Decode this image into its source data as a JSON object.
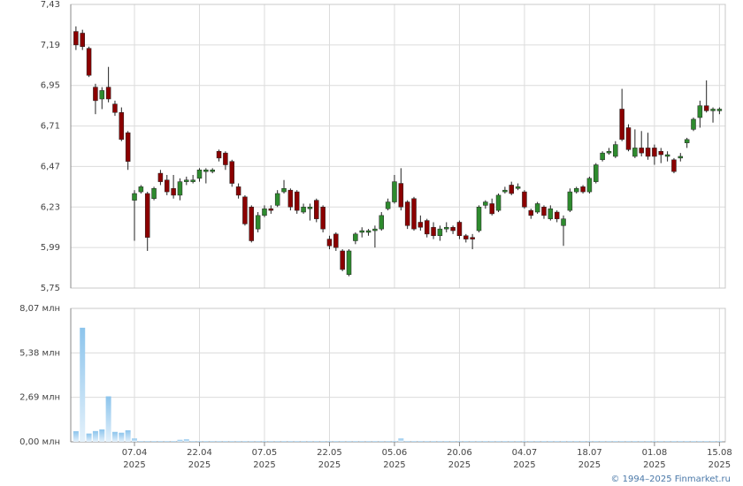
{
  "chart_data": {
    "type": "candlestick",
    "categories": [
      null,
      null,
      null,
      null,
      null,
      null,
      null,
      null,
      null,
      "07.04\n2025",
      null,
      null,
      null,
      null,
      null,
      null,
      null,
      null,
      null,
      "22.04\n2025",
      null,
      null,
      null,
      null,
      null,
      null,
      null,
      null,
      null,
      "07.05\n2025",
      null,
      null,
      null,
      null,
      null,
      null,
      null,
      null,
      null,
      "22.05\n2025",
      null,
      null,
      null,
      null,
      null,
      null,
      null,
      null,
      null,
      "05.06\n2025",
      null,
      null,
      null,
      null,
      null,
      null,
      null,
      null,
      null,
      "20.06\n2025",
      null,
      null,
      null,
      null,
      null,
      null,
      null,
      null,
      null,
      "04.07\n2025",
      null,
      null,
      null,
      null,
      null,
      null,
      null,
      null,
      null,
      "18.07\n2025",
      null,
      null,
      null,
      null,
      null,
      null,
      null,
      null,
      null,
      "01.08\n2025",
      null,
      null,
      null,
      null,
      null,
      null,
      null,
      null,
      null,
      "15.08\n2025"
    ],
    "open": [
      7.27,
      7.26,
      7.17,
      6.94,
      6.87,
      6.94,
      6.84,
      6.79,
      6.67,
      6.27,
      6.32,
      6.31,
      6.28,
      6.43,
      6.39,
      6.34,
      6.3,
      6.38,
      6.38,
      6.4,
      6.44,
      6.44,
      6.56,
      6.55,
      6.5,
      6.35,
      6.29,
      6.23,
      6.1,
      6.18,
      6.22,
      6.24,
      6.32,
      6.33,
      6.32,
      6.2,
      6.22,
      6.27,
      6.23,
      6.04,
      6.07,
      5.97,
      5.83,
      6.03,
      6.08,
      6.08,
      6.09,
      6.1,
      6.22,
      6.26,
      6.37,
      6.26,
      6.28,
      6.14,
      6.15,
      6.11,
      6.06,
      6.1,
      6.11,
      6.14,
      6.06,
      6.05,
      6.09,
      6.24,
      6.25,
      6.21,
      6.32,
      6.36,
      6.34,
      6.32,
      6.21,
      6.2,
      6.23,
      6.16,
      6.2,
      6.12,
      6.21,
      6.32,
      6.35,
      6.32,
      6.38,
      6.51,
      6.55,
      6.53,
      6.81,
      6.7,
      6.53,
      6.58,
      6.58,
      6.58,
      6.56,
      6.53,
      6.51,
      6.52,
      6.61,
      6.69,
      6.76,
      6.83,
      6.8,
      6.8
    ],
    "high": [
      7.3,
      7.28,
      7.18,
      6.96,
      6.94,
      7.06,
      6.86,
      6.82,
      6.68,
      6.33,
      6.36,
      6.32,
      6.35,
      6.45,
      6.42,
      6.42,
      6.4,
      6.41,
      6.42,
      6.46,
      6.46,
      6.46,
      6.57,
      6.56,
      6.51,
      6.37,
      6.3,
      6.24,
      6.2,
      6.24,
      6.24,
      6.33,
      6.39,
      6.34,
      6.33,
      6.25,
      6.25,
      6.28,
      6.24,
      6.06,
      6.08,
      5.98,
      5.98,
      6.08,
      6.11,
      6.1,
      6.12,
      6.2,
      6.28,
      6.42,
      6.46,
      6.27,
      6.29,
      6.18,
      6.16,
      6.14,
      6.12,
      6.14,
      6.12,
      6.15,
      6.07,
      6.07,
      6.24,
      6.27,
      6.28,
      6.31,
      6.35,
      6.38,
      6.37,
      6.33,
      6.22,
      6.26,
      6.24,
      6.24,
      6.21,
      6.18,
      6.34,
      6.35,
      6.36,
      6.41,
      6.49,
      6.56,
      6.58,
      6.62,
      6.93,
      6.72,
      6.69,
      6.68,
      6.67,
      6.6,
      6.58,
      6.56,
      6.52,
      6.55,
      6.64,
      6.76,
      6.86,
      6.98,
      6.82,
      6.82
    ],
    "low": [
      7.16,
      7.16,
      7.0,
      6.78,
      6.81,
      6.85,
      6.77,
      6.62,
      6.45,
      6.03,
      6.31,
      5.97,
      6.27,
      6.36,
      6.3,
      6.28,
      6.27,
      6.36,
      6.37,
      6.38,
      6.37,
      6.43,
      6.5,
      6.45,
      6.35,
      6.28,
      6.12,
      6.02,
      6.08,
      6.17,
      6.19,
      6.23,
      6.31,
      6.21,
      6.19,
      6.19,
      6.15,
      6.14,
      6.08,
      5.98,
      5.97,
      5.85,
      5.82,
      6.01,
      6.05,
      6.06,
      5.99,
      6.09,
      6.21,
      6.25,
      6.21,
      6.1,
      6.09,
      6.09,
      6.05,
      6.04,
      6.03,
      6.08,
      6.07,
      6.04,
      6.02,
      5.98,
      6.08,
      6.22,
      6.18,
      6.2,
      6.31,
      6.3,
      6.33,
      6.22,
      6.16,
      6.19,
      6.16,
      6.15,
      6.14,
      6.0,
      6.2,
      6.31,
      6.31,
      6.31,
      6.37,
      6.5,
      6.54,
      6.52,
      6.62,
      6.56,
      6.52,
      6.53,
      6.51,
      6.48,
      6.49,
      6.5,
      6.43,
      6.5,
      6.58,
      6.68,
      6.7,
      6.79,
      6.73,
      6.78
    ],
    "close": [
      7.19,
      7.18,
      7.01,
      6.86,
      6.92,
      6.87,
      6.79,
      6.63,
      6.5,
      6.31,
      6.35,
      6.05,
      6.34,
      6.38,
      6.32,
      6.3,
      6.38,
      6.39,
      6.39,
      6.45,
      6.45,
      6.45,
      6.52,
      6.48,
      6.37,
      6.3,
      6.13,
      6.03,
      6.18,
      6.22,
      6.21,
      6.31,
      6.34,
      6.23,
      6.21,
      6.23,
      6.23,
      6.16,
      6.1,
      6.0,
      5.99,
      5.86,
      5.97,
      6.07,
      6.09,
      6.09,
      6.1,
      6.18,
      6.26,
      6.38,
      6.23,
      6.12,
      6.1,
      6.11,
      6.07,
      6.06,
      6.1,
      6.11,
      6.09,
      6.06,
      6.04,
      6.04,
      6.23,
      6.26,
      6.19,
      6.3,
      6.33,
      6.31,
      6.35,
      6.23,
      6.18,
      6.25,
      6.18,
      6.22,
      6.16,
      6.16,
      6.32,
      6.34,
      6.32,
      6.4,
      6.48,
      6.55,
      6.56,
      6.6,
      6.63,
      6.57,
      6.58,
      6.55,
      6.53,
      6.53,
      6.54,
      6.54,
      6.44,
      6.53,
      6.63,
      6.75,
      6.83,
      6.8,
      6.81,
      6.81
    ],
    "up_color": "#2e8b2e",
    "down_color": "#8b0000",
    "ylim": [
      5.75,
      7.43
    ],
    "yticks": [
      {
        "value": 5.75,
        "label": "5,75"
      },
      {
        "value": 5.99,
        "label": "5,99"
      },
      {
        "value": 6.23,
        "label": "6,23"
      },
      {
        "value": 6.47,
        "label": "6,47"
      },
      {
        "value": 6.71,
        "label": "6,71"
      },
      {
        "value": 6.95,
        "label": "6,95"
      },
      {
        "value": 7.19,
        "label": "7,19"
      },
      {
        "value": 7.43,
        "label": "7,43"
      }
    ],
    "volume": {
      "color": "#8cc4ec",
      "values": [
        0.64,
        6.9,
        0.5,
        0.65,
        0.75,
        2.75,
        0.6,
        0.55,
        0.7,
        0.2,
        0.05,
        0.05,
        0.05,
        0.05,
        0.05,
        0.05,
        0.12,
        0.15,
        0.05,
        0.05,
        0.05,
        0.05,
        0.05,
        0.05,
        0.05,
        0.05,
        0.05,
        0.05,
        0.05,
        0.05,
        0.05,
        0.05,
        0.05,
        0.05,
        0.05,
        0.05,
        0.05,
        0.05,
        0.05,
        0.05,
        0.05,
        0.05,
        0.05,
        0.05,
        0.05,
        0.05,
        0.05,
        0.05,
        0.05,
        0.05,
        0.2,
        0.05,
        0.05,
        0.05,
        0.05,
        0.05,
        0.05,
        0.05,
        0.05,
        0.05,
        0.05,
        0.05,
        0.05,
        0.05,
        0.05,
        0.05,
        0.05,
        0.05,
        0.05,
        0.05,
        0.05,
        0.05,
        0.05,
        0.05,
        0.05,
        0.05,
        0.05,
        0.05,
        0.05,
        0.05,
        0.05,
        0.05,
        0.05,
        0.05,
        0.05,
        0.05,
        0.05,
        0.05,
        0.05,
        0.05,
        0.05,
        0.05,
        0.05,
        0.05,
        0.05,
        0.05,
        0.05,
        0.05,
        0.05,
        0.05
      ],
      "ylim": [
        0,
        8.07
      ],
      "yticks": [
        {
          "value": 0,
          "label": "0,00 млн"
        },
        {
          "value": 2.69,
          "label": "2,69 млн"
        },
        {
          "value": 5.38,
          "label": "5,38 млн"
        },
        {
          "value": 8.07,
          "label": "8,07 млн"
        }
      ]
    },
    "grid": true,
    "source": "© 1994–2025 Finmarket.ru"
  }
}
